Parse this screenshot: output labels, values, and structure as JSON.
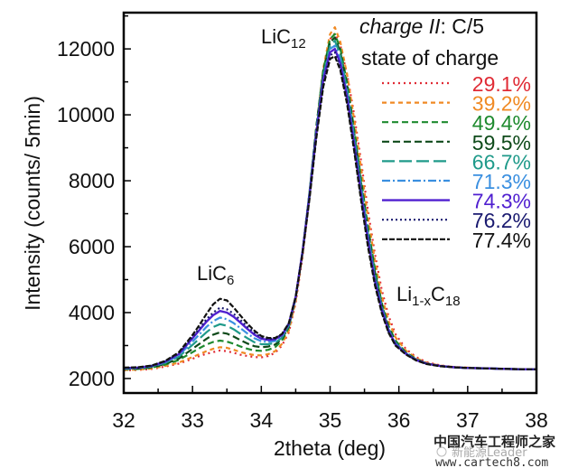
{
  "chart_data": {
    "type": "line",
    "title": "",
    "xlabel": "2theta (deg)",
    "ylabel": "Intensity (counts/ 5min)",
    "xlim": [
      32,
      38
    ],
    "ylim": [
      1560,
      13100
    ],
    "xticks": [
      32,
      33,
      34,
      35,
      36,
      37,
      38
    ],
    "yticks": [
      2000,
      4000,
      6000,
      8000,
      10000,
      12000
    ],
    "xtick_labels": [
      "32",
      "33",
      "34",
      "35",
      "36",
      "37",
      "38"
    ],
    "ytick_labels": [
      "2000",
      "4000",
      "6000",
      "8000",
      "10000",
      "12000"
    ],
    "grid": false,
    "legend": {
      "placement": "top-right",
      "title_line1_italic": "charge II",
      "title_line1_rest": ": C/5",
      "title_line2": "state of charge"
    },
    "annotations": {
      "lic12": {
        "base": "LiC",
        "sub": "12"
      },
      "lic6": {
        "base": "LiC",
        "sub": "6"
      },
      "li1xc18": {
        "base1": "Li",
        "sub1": "1-x",
        "base2": "C",
        "sub2": "18"
      }
    },
    "peaks": {
      "LiC6_position": 33.4,
      "LiC12_position": 35.07
    },
    "x": [
      32.0,
      32.2,
      32.4,
      32.6,
      32.8,
      33.0,
      33.1,
      33.2,
      33.3,
      33.4,
      33.5,
      33.6,
      33.7,
      33.8,
      33.9,
      34.0,
      34.1,
      34.2,
      34.3,
      34.4,
      34.5,
      34.6,
      34.7,
      34.8,
      34.9,
      35.0,
      35.07,
      35.15,
      35.25,
      35.35,
      35.45,
      35.55,
      35.65,
      35.75,
      35.85,
      35.95,
      36.1,
      36.25,
      36.4,
      36.6,
      36.8,
      37.0,
      37.2,
      37.4,
      37.6,
      37.8,
      38.0
    ],
    "series": [
      {
        "name": "29.1%",
        "color": "#e02b35",
        "dash": "2,4",
        "width": 2.2,
        "values": [
          2250,
          2260,
          2290,
          2360,
          2450,
          2600,
          2680,
          2750,
          2800,
          2850,
          2830,
          2780,
          2720,
          2680,
          2650,
          2640,
          2680,
          2780,
          3000,
          3400,
          4300,
          5700,
          7500,
          9500,
          11300,
          12300,
          12470,
          12100,
          11200,
          10000,
          8600,
          7100,
          5800,
          4700,
          3900,
          3350,
          2900,
          2650,
          2500,
          2400,
          2350,
          2330,
          2310,
          2300,
          2290,
          2280,
          2280
        ]
      },
      {
        "name": "39.2%",
        "color": "#f08a24",
        "dash": "5,4",
        "width": 2.2,
        "values": [
          2260,
          2270,
          2300,
          2380,
          2480,
          2650,
          2740,
          2830,
          2900,
          2950,
          2930,
          2870,
          2800,
          2750,
          2710,
          2700,
          2740,
          2830,
          3050,
          3450,
          4350,
          5750,
          7550,
          9600,
          11400,
          12450,
          12660,
          12200,
          11200,
          9850,
          8400,
          6900,
          5600,
          4500,
          3750,
          3250,
          2850,
          2620,
          2480,
          2390,
          2350,
          2330,
          2310,
          2300,
          2290,
          2280,
          2280
        ]
      },
      {
        "name": "49.4%",
        "color": "#1e8a2e",
        "dash": "7,4",
        "width": 2.2,
        "values": [
          2280,
          2290,
          2330,
          2420,
          2560,
          2800,
          2920,
          3030,
          3110,
          3150,
          3120,
          3050,
          2970,
          2900,
          2850,
          2840,
          2870,
          2950,
          3150,
          3550,
          4450,
          5850,
          7650,
          9650,
          11350,
          12300,
          12450,
          12000,
          10950,
          9550,
          8050,
          6600,
          5350,
          4300,
          3600,
          3150,
          2800,
          2590,
          2460,
          2380,
          2340,
          2320,
          2310,
          2300,
          2290,
          2280,
          2280
        ]
      },
      {
        "name": "59.5%",
        "color": "#0e4a1a",
        "dash": "8,4",
        "width": 2.2,
        "values": [
          2290,
          2300,
          2340,
          2440,
          2600,
          2900,
          3050,
          3200,
          3330,
          3400,
          3360,
          3270,
          3160,
          3060,
          2980,
          2950,
          2970,
          3030,
          3200,
          3580,
          4450,
          5850,
          7650,
          9650,
          11300,
          12200,
          12350,
          11900,
          10850,
          9450,
          7950,
          6500,
          5250,
          4250,
          3550,
          3100,
          2780,
          2580,
          2460,
          2380,
          2340,
          2320,
          2310,
          2300,
          2290,
          2280,
          2280
        ]
      },
      {
        "name": "66.7%",
        "color": "#1f9a8a",
        "dash": "14,5",
        "width": 2.2,
        "values": [
          2300,
          2310,
          2360,
          2470,
          2660,
          3020,
          3210,
          3400,
          3560,
          3650,
          3600,
          3490,
          3350,
          3220,
          3100,
          3040,
          3040,
          3080,
          3240,
          3600,
          4450,
          5850,
          7600,
          9550,
          11200,
          12100,
          12250,
          11800,
          10750,
          9350,
          7850,
          6400,
          5150,
          4200,
          3500,
          3080,
          2770,
          2570,
          2450,
          2380,
          2340,
          2320,
          2310,
          2300,
          2290,
          2280,
          2280
        ]
      },
      {
        "name": "71.3%",
        "color": "#3a8fe0",
        "dash": "9,3,2,3",
        "width": 2.2,
        "values": [
          2310,
          2320,
          2370,
          2490,
          2700,
          3120,
          3340,
          3560,
          3740,
          3850,
          3800,
          3680,
          3520,
          3360,
          3220,
          3130,
          3110,
          3140,
          3280,
          3630,
          4470,
          5850,
          7600,
          9500,
          11100,
          12000,
          12100,
          11650,
          10600,
          9200,
          7700,
          6300,
          5050,
          4150,
          3480,
          3060,
          2760,
          2570,
          2450,
          2380,
          2340,
          2320,
          2310,
          2300,
          2290,
          2280,
          2280
        ]
      },
      {
        "name": "74.3%",
        "color": "#5020d0",
        "dash": "",
        "width": 2.4,
        "values": [
          2320,
          2330,
          2380,
          2510,
          2740,
          3220,
          3470,
          3720,
          3920,
          4050,
          4000,
          3870,
          3690,
          3500,
          3330,
          3210,
          3170,
          3190,
          3320,
          3660,
          4480,
          5850,
          7550,
          9450,
          11050,
          11900,
          12000,
          11550,
          10500,
          9100,
          7600,
          6200,
          4980,
          4100,
          3450,
          3040,
          2750,
          2560,
          2450,
          2380,
          2340,
          2320,
          2310,
          2300,
          2290,
          2280,
          2280
        ]
      },
      {
        "name": "76.2%",
        "color": "#1a1a70",
        "dash": "2,3",
        "width": 2.2,
        "values": [
          2320,
          2330,
          2380,
          2520,
          2760,
          3260,
          3520,
          3790,
          4000,
          4150,
          4100,
          3960,
          3770,
          3570,
          3390,
          3250,
          3200,
          3210,
          3340,
          3670,
          4480,
          5830,
          7520,
          9400,
          10950,
          11800,
          11900,
          11450,
          10400,
          9000,
          7500,
          6100,
          4920,
          4050,
          3420,
          3020,
          2740,
          2560,
          2450,
          2380,
          2340,
          2320,
          2310,
          2300,
          2290,
          2280,
          2280
        ]
      },
      {
        "name": "77.4%",
        "color": "#111111",
        "dash": "6,2",
        "width": 2.2,
        "values": [
          2330,
          2340,
          2390,
          2530,
          2790,
          3320,
          3620,
          3950,
          4250,
          4420,
          4370,
          4150,
          3900,
          3660,
          3450,
          3290,
          3230,
          3230,
          3350,
          3680,
          4480,
          5800,
          7450,
          9300,
          10850,
          11700,
          11780,
          11350,
          10300,
          8900,
          7400,
          6000,
          4850,
          4000,
          3390,
          3000,
          2730,
          2550,
          2440,
          2370,
          2340,
          2320,
          2310,
          2300,
          2290,
          2280,
          2280
        ]
      }
    ]
  },
  "watermark": {
    "cn_text": "中国汽车工程师之家",
    "wechat_text": "新能源Leader",
    "url": "www.cartech8.com"
  }
}
